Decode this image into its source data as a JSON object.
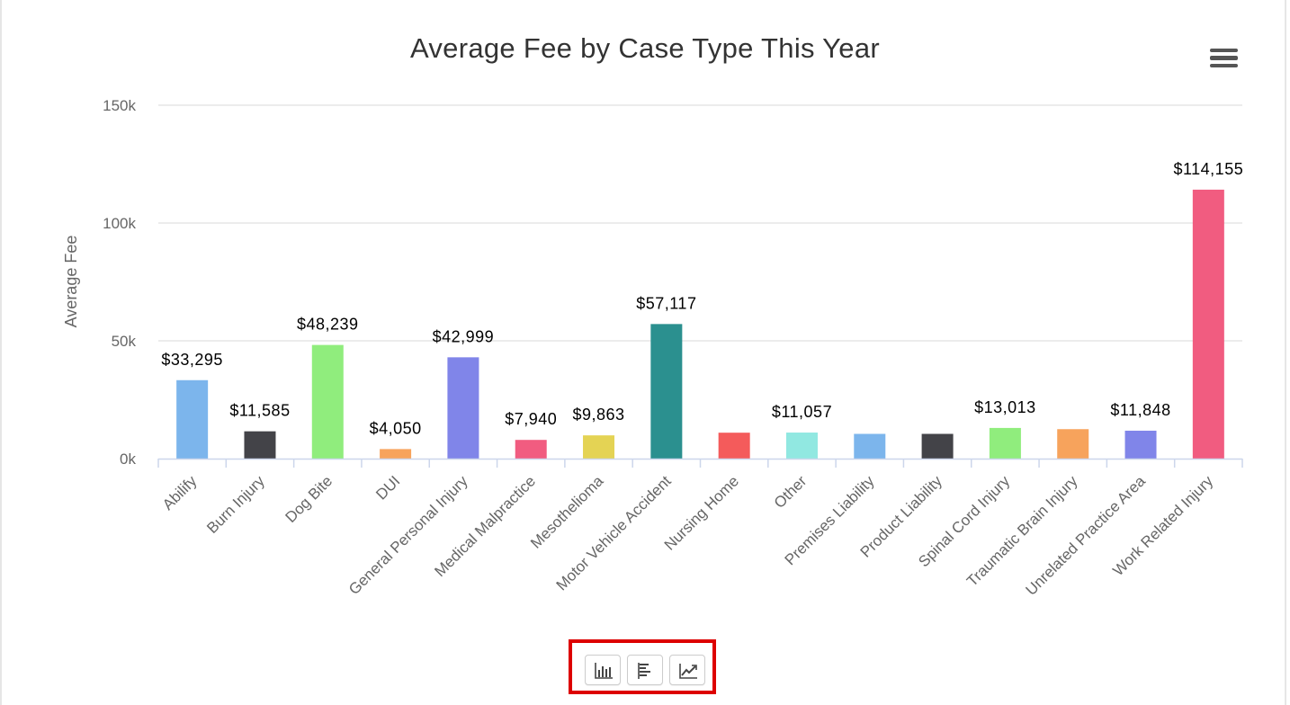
{
  "chart_data": {
    "type": "bar",
    "title": "Average Fee by Case Type This Year",
    "xlabel": "",
    "ylabel": "Average Fee",
    "ylim": [
      0,
      150000
    ],
    "yticks": [
      {
        "value": 0,
        "label": "0k"
      },
      {
        "value": 50000,
        "label": "50k"
      },
      {
        "value": 100000,
        "label": "100k"
      },
      {
        "value": 150000,
        "label": "150k"
      }
    ],
    "grid": true,
    "legend": "none",
    "categories": [
      "Abilify",
      "Burn Injury",
      "Dog Bite",
      "DUI",
      "General Personal Injury",
      "Medical Malpractice",
      "Mesothelioma",
      "Motor Vehicle Accident",
      "Nursing Home",
      "Other",
      "Premises Liability",
      "Product Liability",
      "Spinal Cord Injury",
      "Traumatic Brain Injury",
      "Unrelated Practice Area",
      "Work Related Injury"
    ],
    "values": [
      33295,
      11585,
      48239,
      4050,
      42999,
      7940,
      9863,
      57117,
      11000,
      11057,
      10500,
      10500,
      13013,
      12500,
      11848,
      114155
    ],
    "data_labels": [
      "$33,295",
      "$11,585",
      "$48,239",
      "$4,050",
      "$42,999",
      "$7,940",
      "$9,863",
      "$57,117",
      "",
      "$11,057",
      "",
      "",
      "$13,013",
      "",
      "$11,848",
      "$114,155"
    ],
    "colors": [
      "#7cb5ec",
      "#434348",
      "#90ed7d",
      "#f7a35c",
      "#8085e9",
      "#f15c80",
      "#e4d354",
      "#2b908f",
      "#f45b5b",
      "#91e8e1",
      "#7cb5ec",
      "#434348",
      "#90ed7d",
      "#f7a35c",
      "#8085e9",
      "#f15c80"
    ]
  },
  "toolbar": {
    "highlight_color": "#dd0000",
    "buttons": [
      {
        "name": "column-chart-icon"
      },
      {
        "name": "bar-chart-icon"
      },
      {
        "name": "line-chart-icon"
      }
    ]
  },
  "menu": {
    "icon": "hamburger-menu-icon"
  }
}
